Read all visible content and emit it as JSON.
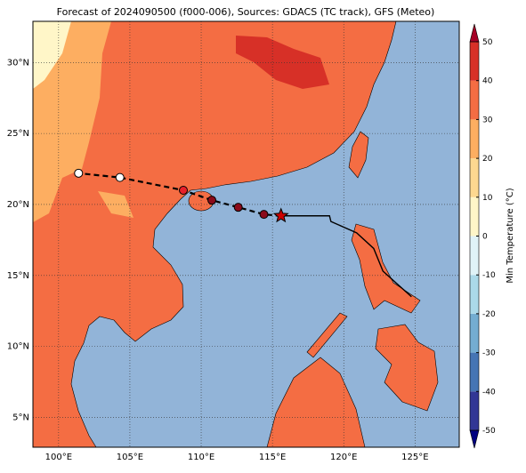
{
  "title": "Forecast of 2024090500 (f000-006), Sources: GDACS (TC track), GFS (Meteo)",
  "map": {
    "xlim": [
      98.2,
      128.1
    ],
    "ylim": [
      2.9,
      32.9
    ],
    "xticks": [
      {
        "value": 100,
        "label": "100°E"
      },
      {
        "value": 105,
        "label": "105°E"
      },
      {
        "value": 110,
        "label": "110°E"
      },
      {
        "value": 115,
        "label": "115°E"
      },
      {
        "value": 120,
        "label": "120°E"
      },
      {
        "value": 125,
        "label": "125°E"
      }
    ],
    "yticks": [
      {
        "value": 5,
        "label": "5°N"
      },
      {
        "value": 10,
        "label": "10°N"
      },
      {
        "value": 15,
        "label": "15°N"
      },
      {
        "value": 20,
        "label": "20°N"
      },
      {
        "value": 25,
        "label": "25°N"
      },
      {
        "value": 30,
        "label": "30°N"
      }
    ],
    "observed_track": {
      "lon": [
        115.6,
        117.75,
        119.0,
        119.1,
        120.9,
        122.1,
        122.75,
        124.75
      ],
      "lat": [
        19.2,
        19.2,
        19.2,
        18.8,
        18.0,
        16.9,
        15.3,
        13.5
      ]
    },
    "forecast_track": {
      "lon": [
        115.6,
        114.4,
        112.6,
        110.75,
        108.75,
        104.3,
        101.4
      ],
      "lat": [
        19.2,
        19.3,
        19.8,
        20.3,
        21.0,
        21.9,
        22.2
      ],
      "colors": [
        "#cc0000",
        "#8b0a1a",
        "#8b0a1a",
        "#8b0a1a",
        "#e8202a",
        "#ffffff",
        "#ffffff"
      ]
    }
  },
  "colorbar": {
    "label": "Min Temperature (°C)",
    "lim": [
      -50,
      50
    ],
    "ticks": [
      -50,
      -40,
      -30,
      -20,
      -10,
      0,
      10,
      20,
      30,
      40,
      50
    ],
    "colors": [
      "#313695",
      "#4575b4",
      "#74add1",
      "#abd9e9",
      "#e0f3f8",
      "#fff6c8",
      "#fdd890",
      "#fdae61",
      "#f46d43",
      "#d73027"
    ],
    "extend_colors": [
      "#000080",
      "#a50026"
    ]
  }
}
